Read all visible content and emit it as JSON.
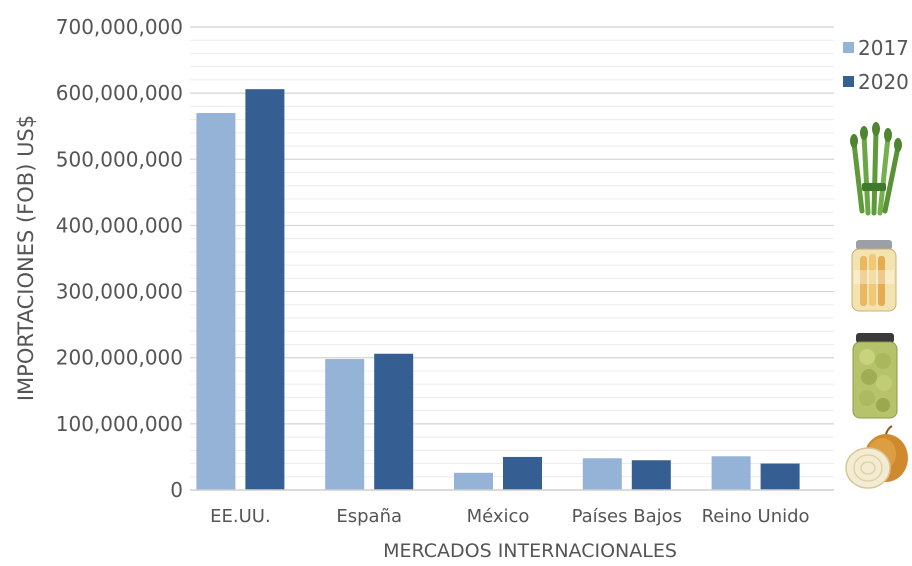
{
  "chart_data": {
    "type": "bar",
    "title": "",
    "xlabel": "MERCADOS INTERNACIONALES",
    "ylabel": "IMPORTACIONES (FOB) US$",
    "ylim": [
      0,
      700000000
    ],
    "y_ticks": [
      "0",
      "100,000,000",
      "200,000,000",
      "300,000,000",
      "400,000,000",
      "500,000,000",
      "600,000,000",
      "700,000,000"
    ],
    "categories": [
      "EE.UU.",
      "España",
      "México",
      "Países Bajos",
      "Reino Unido"
    ],
    "series": [
      {
        "name": "2017",
        "color": "#95b3d7",
        "values": [
          570000000,
          198000000,
          26000000,
          48000000,
          51000000
        ]
      },
      {
        "name": "2020",
        "color": "#355e92",
        "values": [
          606000000,
          206000000,
          50000000,
          45000000,
          40000000
        ]
      }
    ],
    "grid": true,
    "legend": "top-right"
  },
  "decorations": {
    "icons": [
      "asparagus-bundle-icon",
      "asparagus-jar-icon",
      "artichoke-jar-icon",
      "onion-icon"
    ]
  }
}
